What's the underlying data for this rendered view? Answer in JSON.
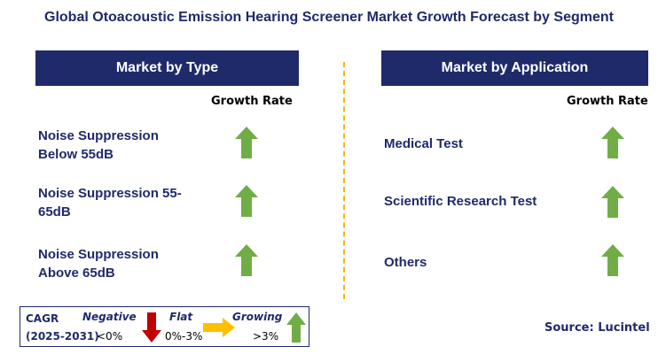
{
  "title": "Global Otoacoustic Emission Hearing Screener Market Growth Forecast by Segment",
  "left": {
    "header": "Market by Type",
    "growth_label": "Growth Rate",
    "items": [
      {
        "line1": "Noise Suppression",
        "line2": "Below 55dB",
        "trend": "growing"
      },
      {
        "line1": "Noise Suppression 55-",
        "line2": "65dB",
        "trend": "growing"
      },
      {
        "line1": "Noise Suppression",
        "line2": "Above 65dB",
        "trend": "growing"
      }
    ]
  },
  "right": {
    "header": "Market by Application",
    "growth_label": "Growth Rate",
    "items": [
      {
        "label": "Medical Test",
        "trend": "growing"
      },
      {
        "label": "Scientific Research Test",
        "trend": "growing"
      },
      {
        "label": "Others",
        "trend": "growing"
      }
    ]
  },
  "legend": {
    "cagr": "CAGR",
    "period": "(2025-2031)",
    "negative_label": "Negative",
    "negative_range": "<0%",
    "flat_label": "Flat",
    "flat_range": "0%-3%",
    "growing_label": "Growing",
    "growing_range": ">3%"
  },
  "source": "Source: Lucintel",
  "colors": {
    "navy": "#1f2a6b",
    "green_arrow": "#70ad47",
    "red_arrow": "#c00000",
    "yellow_arrow": "#ffc000",
    "divider": "#f5b800"
  }
}
